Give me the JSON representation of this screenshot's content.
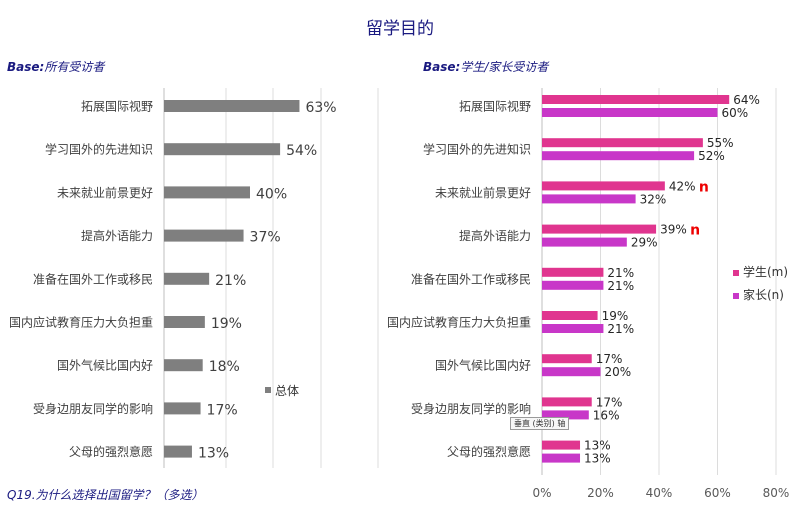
{
  "title": "留学目的",
  "left_base": {
    "prefix": "Base:",
    "text": "所有受访者"
  },
  "right_base": {
    "prefix": "Base:",
    "text": "学生/家长受访者"
  },
  "question": "Q19.为什么选择出国留学？（多选）",
  "tooltip": "垂直 (类别) 轴",
  "colors": {
    "total": "#7f7f7f",
    "student": "#e0358f",
    "parent": "#c837c8",
    "flag": "#ee0000",
    "title": "#1a1a80"
  },
  "chart_data": [
    {
      "type": "bar",
      "orientation": "horizontal",
      "categories": [
        "拓展国际视野",
        "学习国外的先进知识",
        "未来就业前景更好",
        "提高外语能力",
        "准备在国外工作或移民",
        "国内应试教育压力大负担重",
        "国外气候比国内好",
        "受身边朋友同学的影响",
        "父母的强烈意愿"
      ],
      "series": [
        {
          "name": "总体",
          "values": [
            63,
            54,
            40,
            37,
            21,
            19,
            18,
            17,
            13
          ]
        }
      ],
      "value_format": "percent",
      "grid": true,
      "legend": "right"
    },
    {
      "type": "bar",
      "orientation": "horizontal",
      "categories": [
        "拓展国际视野",
        "学习国外的先进知识",
        "未来就业前景更好",
        "提高外语能力",
        "准备在国外工作或移民",
        "国内应试教育压力大负担重",
        "国外气候比国内好",
        "受身边朋友同学的影响",
        "父母的强烈意愿"
      ],
      "series": [
        {
          "name": "学生(m)",
          "values": [
            64,
            55,
            42,
            39,
            21,
            19,
            17,
            17,
            13
          ]
        },
        {
          "name": "家长(n)",
          "values": [
            60,
            52,
            32,
            29,
            21,
            21,
            20,
            16,
            13
          ]
        }
      ],
      "significance_marks": [
        {
          "category": "未来就业前景更好",
          "text": "n"
        },
        {
          "category": "提高外语能力",
          "text": "n"
        }
      ],
      "xlim": [
        0,
        80
      ],
      "xticks": [
        "0%",
        "20%",
        "40%",
        "60%",
        "80%"
      ],
      "value_format": "percent",
      "grid": true,
      "legend": "right"
    }
  ]
}
